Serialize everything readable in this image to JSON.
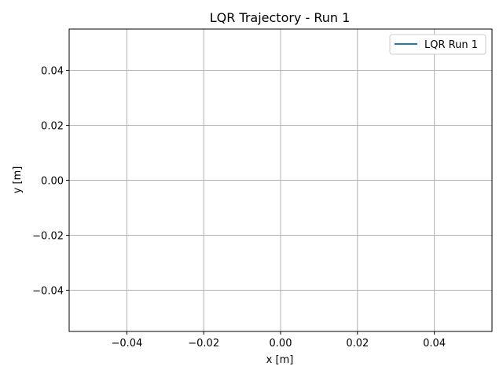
{
  "chart_data": {
    "type": "line",
    "title": "LQR Trajectory - Run 1",
    "xlabel": "x [m]",
    "ylabel": "y [m]",
    "xlim": [
      -0.055,
      0.055
    ],
    "ylim": [
      -0.055,
      0.055
    ],
    "xticks": [
      -0.04,
      -0.02,
      0.0,
      0.02,
      0.04
    ],
    "yticks": [
      -0.04,
      -0.02,
      0.0,
      0.02,
      0.04
    ],
    "xtick_labels": [
      "−0.04",
      "−0.02",
      "0.00",
      "0.02",
      "0.04"
    ],
    "ytick_labels": [
      "−0.04",
      "−0.02",
      "0.00",
      "0.02",
      "0.04"
    ],
    "grid": true,
    "legend_position": "top-right",
    "series": [
      {
        "name": "LQR Run 1",
        "color": "#1f77b4",
        "x": [],
        "y": []
      }
    ]
  }
}
